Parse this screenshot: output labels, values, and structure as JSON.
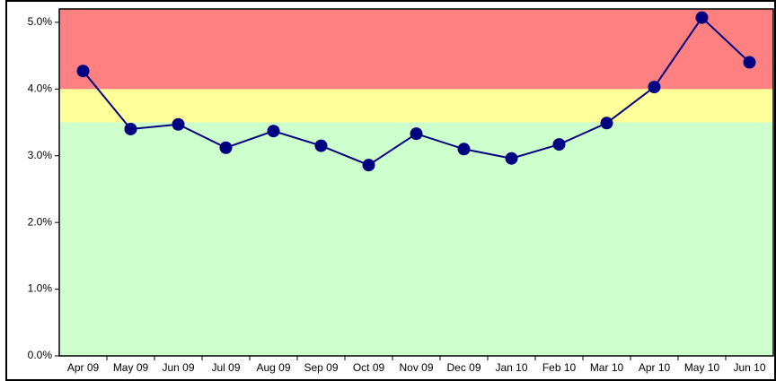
{
  "chart_data": {
    "type": "line",
    "categories": [
      "Apr 09",
      "May 09",
      "Jun 09",
      "Jul 09",
      "Aug 09",
      "Sep 09",
      "Oct 09",
      "Nov 09",
      "Dec 09",
      "Jan 10",
      "Feb 10",
      "Mar 10",
      "Apr 10",
      "May 10",
      "Jun 10"
    ],
    "series": [
      {
        "color": "#000080",
        "values": [
          4.27,
          3.4,
          3.47,
          3.12,
          3.37,
          3.15,
          2.86,
          3.33,
          3.1,
          2.96,
          3.17,
          3.49,
          4.03,
          5.07,
          4.4
        ]
      }
    ],
    "ylim": [
      0,
      5.2
    ],
    "yticks": [
      {
        "value": 0,
        "label": "0.0%"
      },
      {
        "value": 1,
        "label": "1.0%"
      },
      {
        "value": 2,
        "label": "2.0%"
      },
      {
        "value": 3,
        "label": "3.0%"
      },
      {
        "value": 4,
        "label": "4.0%"
      },
      {
        "value": 5,
        "label": "5.0%"
      }
    ],
    "bands": [
      {
        "from": 0,
        "to": 3.5,
        "color": "#ccffcc"
      },
      {
        "from": 3.5,
        "to": 4,
        "color": "#ffff99"
      },
      {
        "from": 4,
        "to": 5.2,
        "color": "#ff8080"
      }
    ]
  }
}
